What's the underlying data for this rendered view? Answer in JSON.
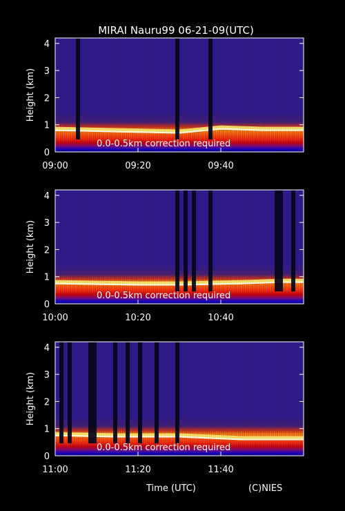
{
  "title": "MIRAI Nauru99 06-21-09(UTC)",
  "footer": {
    "xlabel": "Time (UTC)",
    "credit": "(C)NIES"
  },
  "chart_data": [
    {
      "type": "heatmap",
      "ylabel": "Height (km)",
      "yticks": [
        "0",
        "1",
        "2",
        "3",
        "4"
      ],
      "ylim": [
        0,
        4.2
      ],
      "xlim": [
        "09:00",
        "10:00"
      ],
      "xticks": [
        "09:00",
        "09:20",
        "09:40"
      ],
      "annotation": "0.0-0.5km correction required",
      "boundary_layer_top_km": [
        [
          "09:00",
          0.85
        ],
        [
          "09:15",
          0.8
        ],
        [
          "09:30",
          0.75
        ],
        [
          "09:40",
          0.9
        ],
        [
          "09:50",
          0.85
        ],
        [
          "10:00",
          0.85
        ]
      ],
      "gaps": [
        [
          "09:05",
          "09:06"
        ],
        [
          "09:29",
          "09:30"
        ],
        [
          "09:37",
          "09:38"
        ]
      ]
    },
    {
      "type": "heatmap",
      "ylabel": "Height (km)",
      "yticks": [
        "0",
        "1",
        "2",
        "3",
        "4"
      ],
      "ylim": [
        0,
        4.2
      ],
      "xlim": [
        "10:00",
        "11:00"
      ],
      "xticks": [
        "10:00",
        "10:20",
        "10:40"
      ],
      "annotation": "0.0-0.5km correction required",
      "boundary_layer_top_km": [
        [
          "10:00",
          0.8
        ],
        [
          "10:20",
          0.75
        ],
        [
          "10:30",
          0.75
        ],
        [
          "10:45",
          0.8
        ],
        [
          "10:55",
          0.85
        ],
        [
          "11:00",
          0.85
        ]
      ],
      "gaps": [
        [
          "10:29",
          "10:30"
        ],
        [
          "10:31",
          "10:32"
        ],
        [
          "10:33",
          "10:34"
        ],
        [
          "10:37",
          "10:38"
        ],
        [
          "10:53",
          "10:55"
        ],
        [
          "10:57",
          "10:58"
        ]
      ]
    },
    {
      "type": "heatmap",
      "ylabel": "Height (km)",
      "yticks": [
        "0",
        "1",
        "2",
        "3",
        "4"
      ],
      "ylim": [
        0,
        4.2
      ],
      "xlim": [
        "11:00",
        "12:00"
      ],
      "xticks": [
        "11:00",
        "11:20",
        "11:40"
      ],
      "annotation": "0.0-0.5km correction required",
      "boundary_layer_top_km": [
        [
          "11:00",
          0.8
        ],
        [
          "11:15",
          0.75
        ],
        [
          "11:30",
          0.75
        ],
        [
          "11:45",
          0.65
        ],
        [
          "12:00",
          0.65
        ]
      ],
      "gaps": [
        [
          "11:01",
          "11:02"
        ],
        [
          "11:03",
          "11:04"
        ],
        [
          "11:08",
          "11:10"
        ],
        [
          "11:14",
          "11:15"
        ],
        [
          "11:17",
          "11:18"
        ],
        [
          "11:20",
          "11:21"
        ],
        [
          "11:24",
          "11:25"
        ],
        [
          "11:29",
          "11:30"
        ]
      ]
    }
  ]
}
